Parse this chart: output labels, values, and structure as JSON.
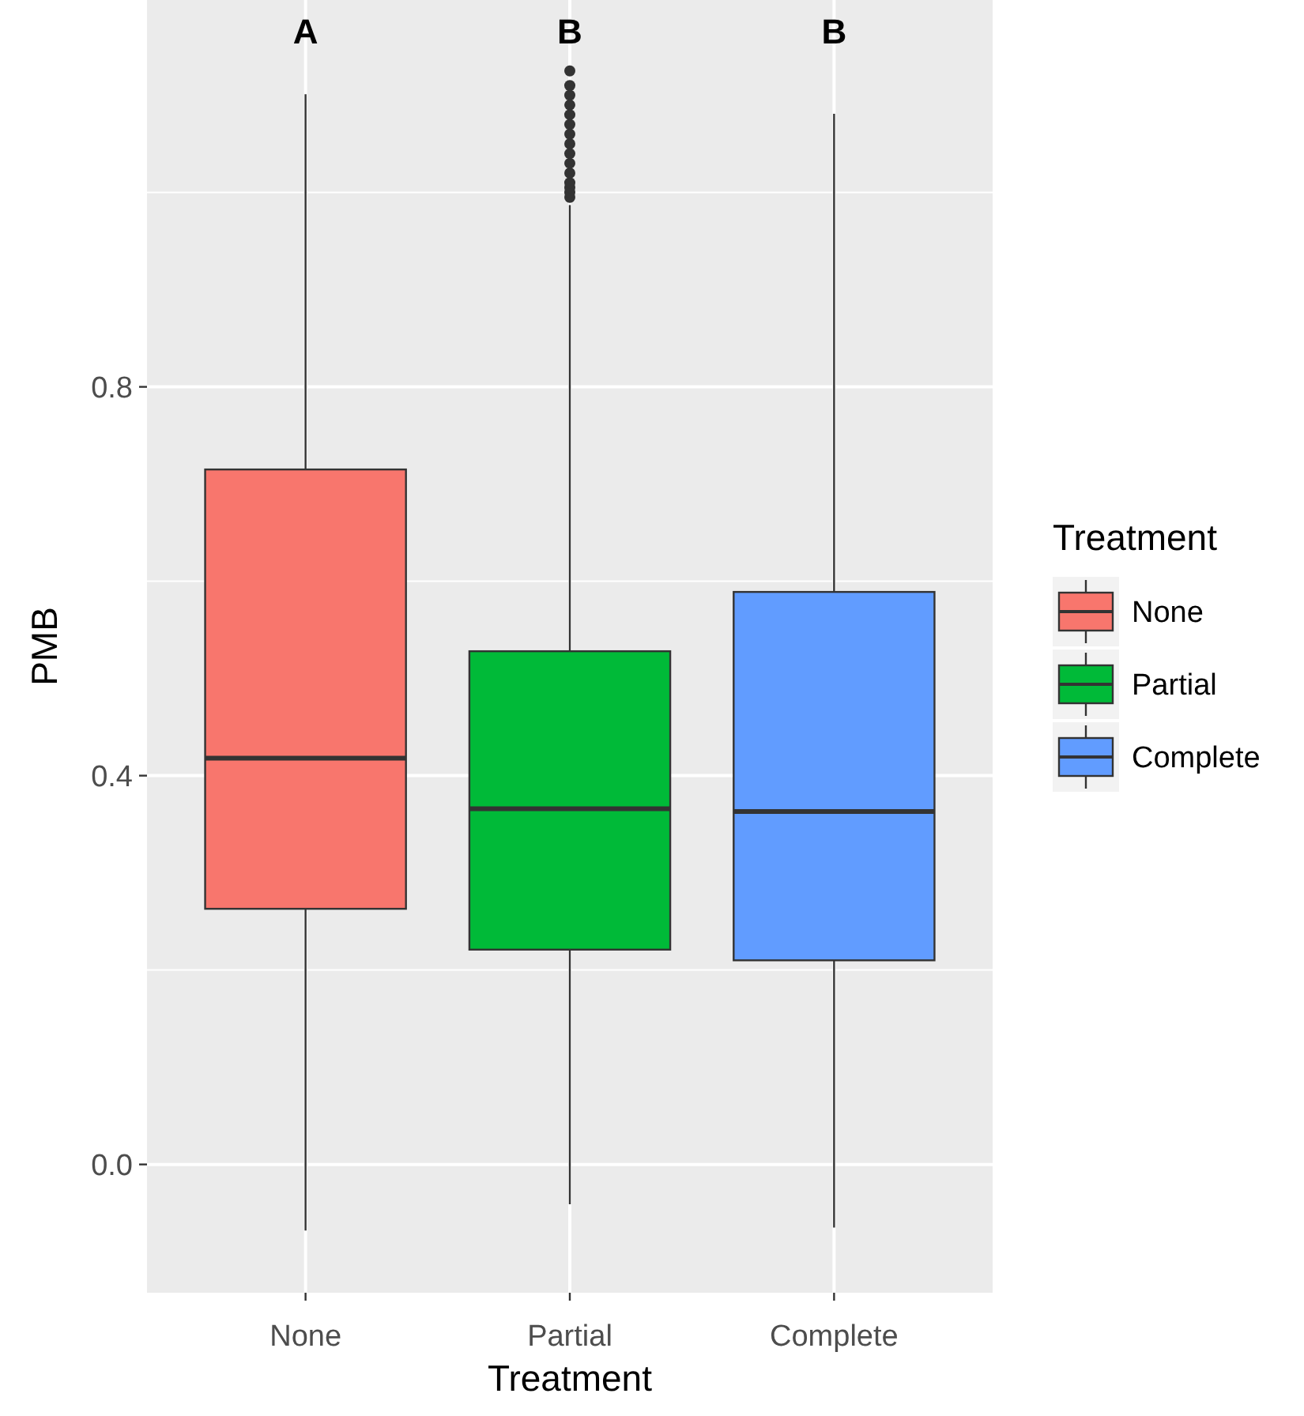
{
  "chart_data": {
    "type": "box",
    "xlabel": "Treatment",
    "ylabel": "PMB",
    "categories": [
      "None",
      "Partial",
      "Complete"
    ],
    "series": [
      {
        "name": "None",
        "color": "#f8766d",
        "boxes": [
          {
            "low": -0.068,
            "q1": 0.263,
            "median": 0.418,
            "q3": 0.715,
            "high": 1.101
          },
          null,
          null
        ]
      },
      {
        "name": "Partial",
        "color": "#00ba38",
        "boxes": [
          null,
          {
            "low": -0.041,
            "q1": 0.221,
            "median": 0.366,
            "q3": 0.528,
            "high": 0.987,
            "outliers": [
              0.995,
              1.0,
              1.005,
              1.01,
              1.02,
              1.03,
              1.04,
              1.05,
              1.06,
              1.07,
              1.08,
              1.09,
              1.1,
              1.11,
              1.125
            ]
          },
          null
        ]
      },
      {
        "name": "Complete",
        "color": "#619cff",
        "boxes": [
          null,
          null,
          {
            "low": -0.065,
            "q1": 0.21,
            "median": 0.363,
            "q3": 0.589,
            "high": 1.081
          }
        ]
      }
    ],
    "ylim": [
      -0.132,
      1.198
    ],
    "yticks": [
      {
        "value": 0,
        "label": "0.0"
      },
      {
        "value": 0.2,
        "label": null
      },
      {
        "value": 0.4,
        "label": "0.4"
      },
      {
        "value": 0.6,
        "label": null
      },
      {
        "value": 0.8,
        "label": "0.8"
      },
      {
        "value": 1.0,
        "label": null
      }
    ],
    "grid": true,
    "legend": "right",
    "legend_title": "Treatment",
    "annotations": [
      "A",
      "B",
      "B"
    ]
  }
}
